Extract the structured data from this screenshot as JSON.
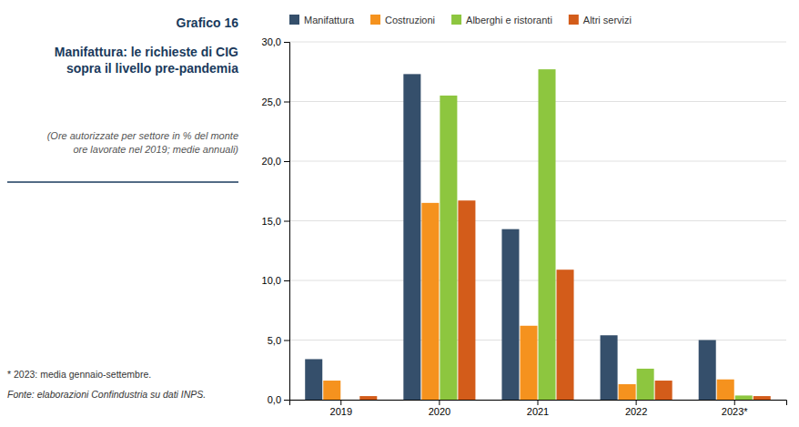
{
  "chart_data": {
    "type": "bar",
    "title": "Manifattura: le richieste di CIG\nsopra il livello pre-pandemia",
    "subtitle": "(Ore autorizzate per settore in % del monte\nore lavorate nel 2019; medie annuali)",
    "annotations": [
      "Grafico 16",
      "* 2023: media gennaio-settembre.",
      "Fonte: elaborazioni Confindustria su dati INPS."
    ],
    "categories": [
      "2019",
      "2020",
      "2021",
      "2022",
      "2023*"
    ],
    "series": [
      {
        "name": "Manifattura",
        "color": "#354f6b",
        "values": [
          3.4,
          27.3,
          14.3,
          5.4,
          5.0
        ]
      },
      {
        "name": "Costruzioni",
        "color": "#f5921e",
        "values": [
          1.6,
          16.5,
          6.2,
          1.3,
          1.7
        ]
      },
      {
        "name": "Alberghi e ristoranti",
        "color": "#8dc63f",
        "values": [
          0.0,
          25.5,
          27.7,
          2.6,
          0.35
        ]
      },
      {
        "name": "Altri servizi",
        "color": "#d35c1a",
        "values": [
          0.3,
          16.7,
          10.9,
          1.6,
          0.3
        ]
      }
    ],
    "ylim": [
      0,
      30
    ],
    "yticks": [
      {
        "value": 0,
        "label": "0,0"
      },
      {
        "value": 5,
        "label": "5,0"
      },
      {
        "value": 10,
        "label": "10,0"
      },
      {
        "value": 15,
        "label": "15,0"
      },
      {
        "value": 20,
        "label": "20,0"
      },
      {
        "value": 25,
        "label": "25,0"
      },
      {
        "value": 30,
        "label": "30,0"
      }
    ],
    "grid": true,
    "legend": "upper left"
  }
}
